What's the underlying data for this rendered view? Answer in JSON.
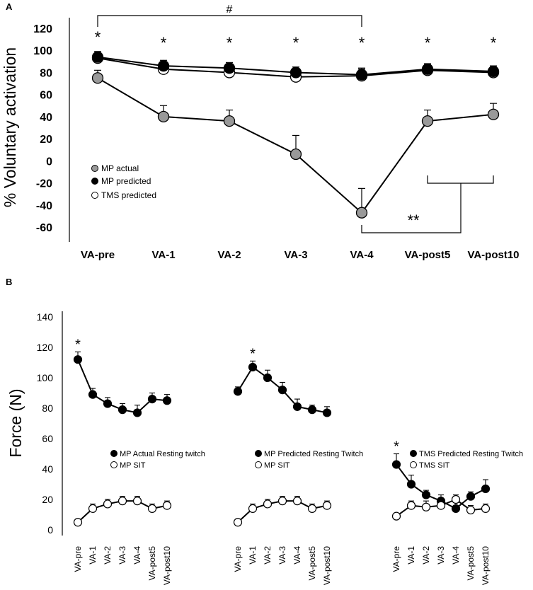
{
  "chart_data": [
    {
      "panel_label": "A",
      "type": "line",
      "ylabel": "% Voluntary activation",
      "xlabel": "",
      "ylim": [
        -60,
        120
      ],
      "yticks": [
        120,
        100,
        80,
        60,
        40,
        20,
        0,
        -20,
        -40,
        -60
      ],
      "categories": [
        "VA-pre",
        "VA-1",
        "VA-2",
        "VA-3",
        "VA-4",
        "VA-post5",
        "VA-post10"
      ],
      "series": [
        {
          "name": "MP actual",
          "fill": "#999999",
          "values": [
            75,
            40,
            36,
            6,
            -47,
            36,
            42
          ],
          "errors": [
            7,
            10,
            10,
            17,
            22,
            10,
            10
          ]
        },
        {
          "name": "TMS predicted",
          "fill": "#ffffff",
          "values": [
            93,
            83,
            80,
            76,
            77,
            82,
            80
          ],
          "errors": [
            4,
            5,
            5,
            5,
            7,
            5,
            5
          ]
        },
        {
          "name": "MP predicted",
          "fill": "#000000",
          "values": [
            94,
            86,
            84,
            80,
            78,
            83,
            81
          ],
          "errors": [
            5,
            5,
            5,
            5,
            5,
            5,
            5
          ]
        }
      ],
      "annotations": {
        "stars": [
          "*",
          "*",
          "*",
          "*",
          "*",
          "*",
          "*"
        ],
        "hash": "#",
        "double_star": "**"
      }
    },
    {
      "panel_label": "B",
      "type": "line",
      "ylabel": "Force (N)",
      "ylim": [
        0,
        140
      ],
      "yticks": [
        140,
        120,
        100,
        80,
        60,
        40,
        20,
        0
      ],
      "categories": [
        "VA-pre",
        "VA-1",
        "VA-2",
        "VA-3",
        "VA-4",
        "VA-post5",
        "VA-post10"
      ],
      "groups": [
        {
          "series": [
            {
              "name": "MP Actual Resting twitch",
              "fill": "#000000",
              "values": [
                112,
                89,
                83,
                79,
                77,
                86,
                85
              ],
              "errors": [
                5,
                4,
                4,
                4,
                5,
                4,
                4
              ]
            },
            {
              "name": "MP SIT",
              "fill": "#ffffff",
              "values": [
                5,
                14,
                17,
                19,
                19,
                14,
                16
              ],
              "errors": [
                2,
                3,
                3,
                3,
                3,
                3,
                3
              ]
            }
          ],
          "star": "*",
          "star_index": 0
        },
        {
          "series": [
            {
              "name": "MP Predicted Resting Twitch",
              "fill": "#000000",
              "values": [
                91,
                107,
                100,
                92,
                81,
                79,
                77
              ],
              "errors": [
                3,
                4,
                5,
                5,
                5,
                3,
                4
              ]
            },
            {
              "name": "MP SIT",
              "fill": "#ffffff",
              "values": [
                5,
                14,
                17,
                19,
                19,
                14,
                16
              ],
              "errors": [
                2,
                3,
                3,
                3,
                3,
                3,
                3
              ]
            }
          ],
          "star": "*",
          "star_index": 1
        },
        {
          "series": [
            {
              "name": "TMS Predicted Resting Twitch",
              "fill": "#000000",
              "values": [
                43,
                30,
                23,
                19,
                14,
                22,
                27
              ],
              "errors": [
                7,
                6,
                3,
                4,
                4,
                3,
                6
              ]
            },
            {
              "name": "TMS SIT",
              "fill": "#ffffff",
              "values": [
                9,
                16,
                15,
                16,
                20,
                13,
                14
              ],
              "errors": [
                1,
                3,
                4,
                3,
                3,
                3,
                3
              ]
            }
          ],
          "star": "*",
          "star_index": 0
        }
      ]
    }
  ]
}
